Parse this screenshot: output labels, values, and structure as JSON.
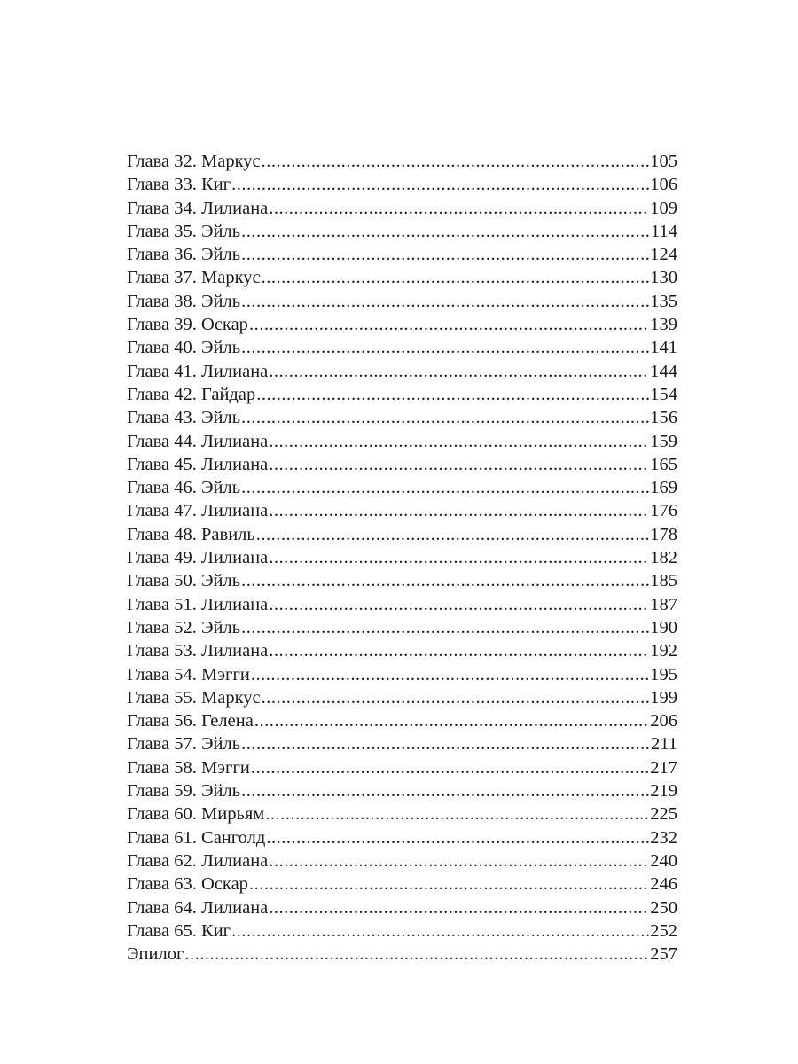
{
  "toc": [
    {
      "title": "Глава 32. Маркус",
      "page": "105"
    },
    {
      "title": "Глава 33. Киг",
      "page": "106"
    },
    {
      "title": "Глава 34. Лилиана",
      "page": "109"
    },
    {
      "title": "Глава 35. Эйль",
      "page": "114"
    },
    {
      "title": "Глава 36. Эйль",
      "page": "124"
    },
    {
      "title": "Глава 37. Маркус",
      "page": "130"
    },
    {
      "title": "Глава 38. Эйль",
      "page": "135"
    },
    {
      "title": "Глава 39. Оскар",
      "page": "139"
    },
    {
      "title": "Глава 40. Эйль",
      "page": "141"
    },
    {
      "title": "Глава 41. Лилиана",
      "page": "144"
    },
    {
      "title": "Глава 42. Гайдар",
      "page": "154"
    },
    {
      "title": "Глава 43. Эйль",
      "page": "156"
    },
    {
      "title": "Глава 44. Лилиана",
      "page": "159"
    },
    {
      "title": "Глава 45. Лилиана",
      "page": "165"
    },
    {
      "title": "Глава 46. Эйль",
      "page": "169"
    },
    {
      "title": "Глава 47. Лилиана",
      "page": "176"
    },
    {
      "title": "Глава 48. Равиль",
      "page": "178"
    },
    {
      "title": "Глава 49. Лилиана",
      "page": "182"
    },
    {
      "title": "Глава 50. Эйль",
      "page": "185"
    },
    {
      "title": "Глава 51. Лилиана",
      "page": "187"
    },
    {
      "title": "Глава 52. Эйль",
      "page": "190"
    },
    {
      "title": "Глава 53. Лилиана",
      "page": "192"
    },
    {
      "title": "Глава 54. Мэгги",
      "page": "195"
    },
    {
      "title": "Глава 55. Маркус",
      "page": "199"
    },
    {
      "title": "Глава 56. Гелена",
      "page": "206"
    },
    {
      "title": "Глава 57. Эйль",
      "page": "211"
    },
    {
      "title": "Глава 58. Мэгги",
      "page": "217"
    },
    {
      "title": "Глава 59. Эйль",
      "page": "219"
    },
    {
      "title": "Глава 60. Мирьям",
      "page": "225"
    },
    {
      "title": "Глава 61. Санголд",
      "page": "232"
    },
    {
      "title": "Глава 62. Лилиана",
      "page": "240"
    },
    {
      "title": "Глава 63. Оскар",
      "page": "246"
    },
    {
      "title": "Глава 64. Лилиана",
      "page": "250"
    },
    {
      "title": "Глава 65. Киг",
      "page": "252"
    },
    {
      "title": "Эпилог",
      "page": "257"
    }
  ]
}
